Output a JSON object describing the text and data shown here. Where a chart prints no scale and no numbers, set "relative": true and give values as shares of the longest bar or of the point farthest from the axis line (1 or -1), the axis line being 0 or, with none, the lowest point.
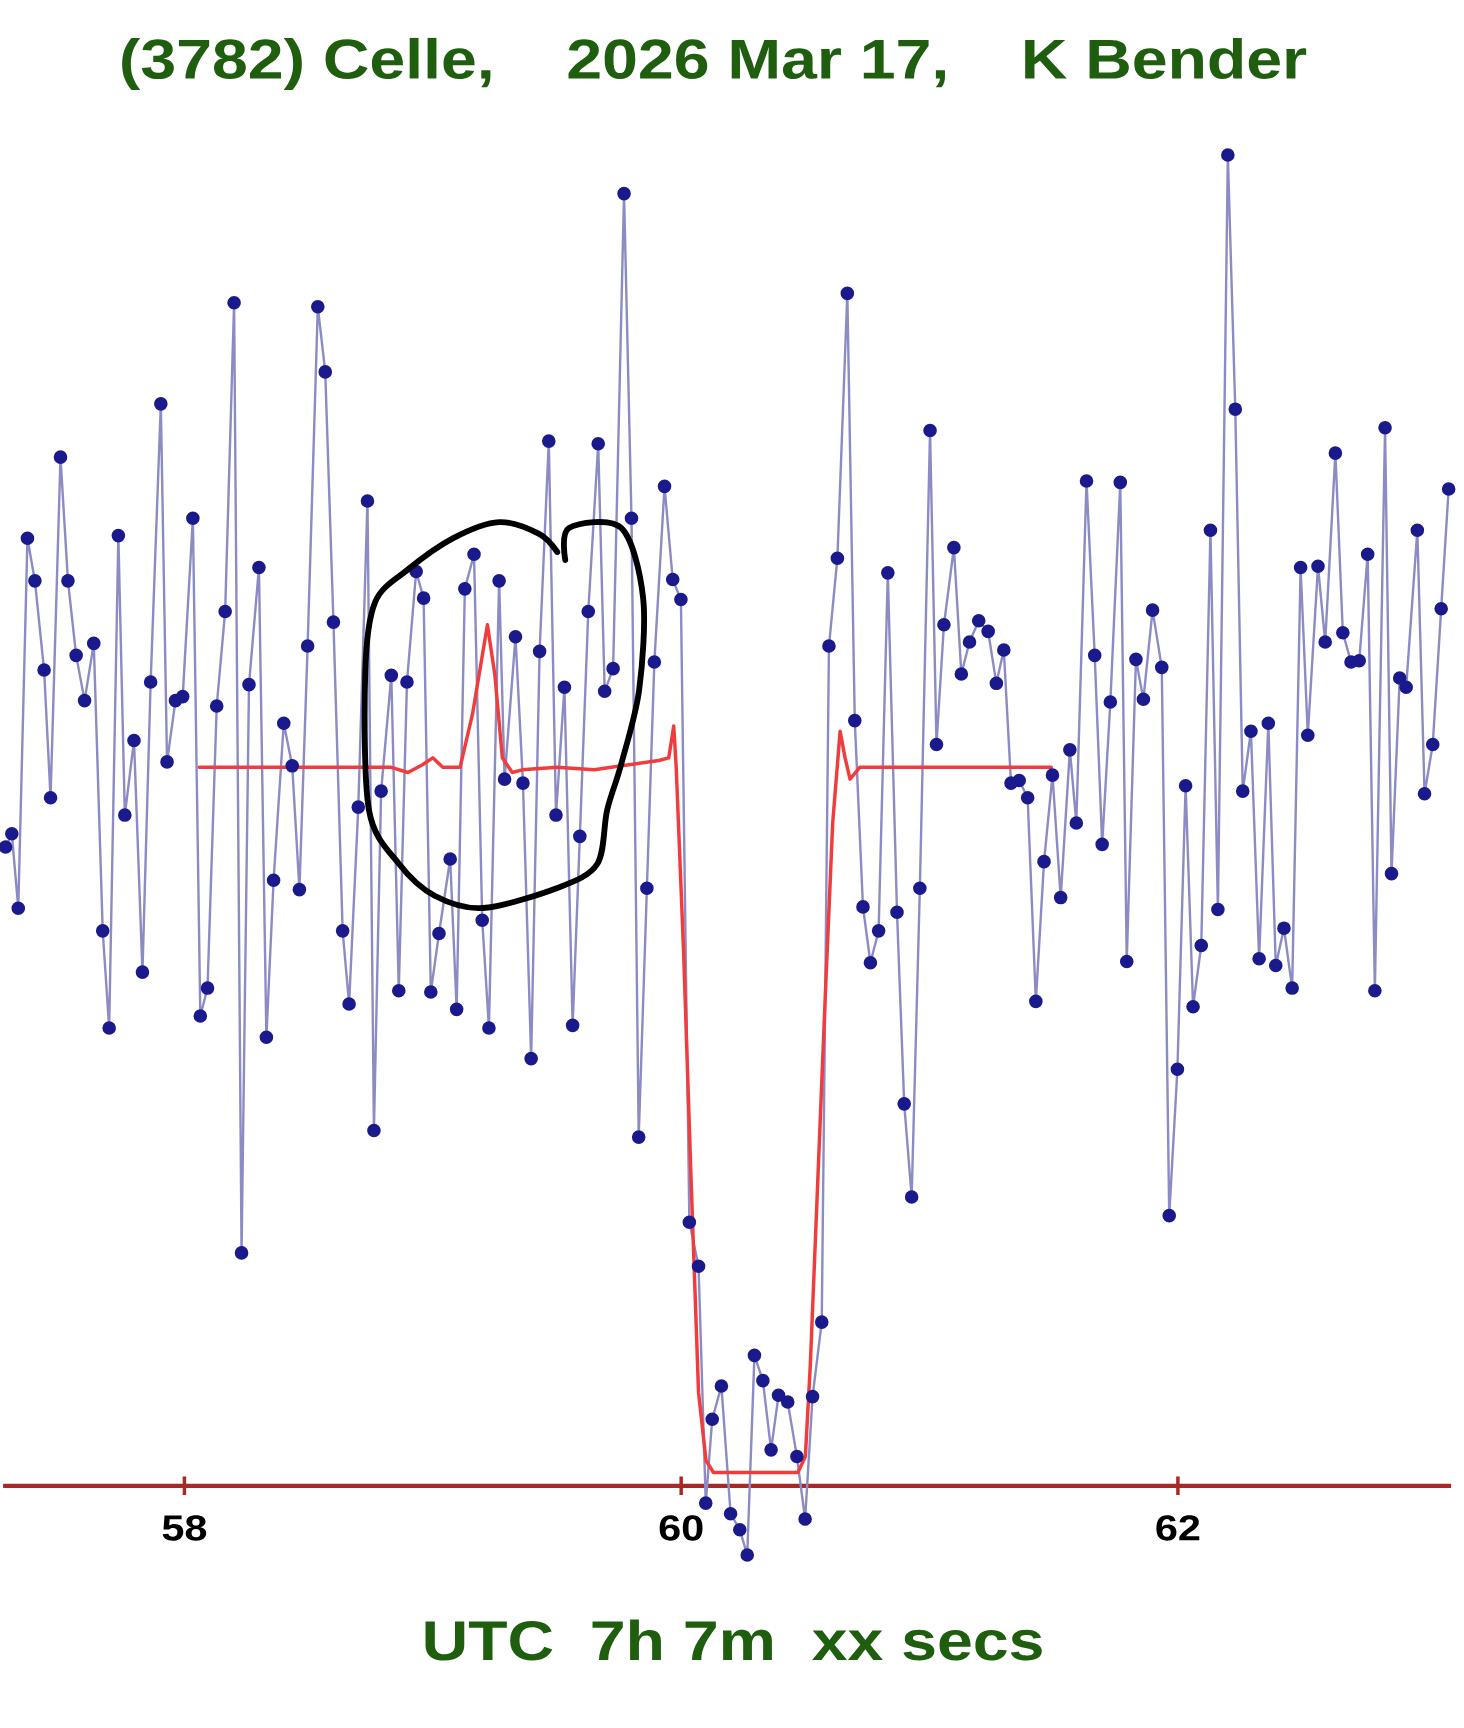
{
  "chart_data": {
    "type": "line",
    "title": "(3782) Celle,    2026 Mar 17,    K Bender",
    "xlabel": "UTC  7h 7m  xx secs",
    "relative": true,
    "xlim": [
      57.27,
      63.1
    ],
    "xticks": [
      58,
      60,
      62
    ],
    "marker": "circle",
    "line_style": "solid",
    "series": [
      {
        "color": "#1a1a8c",
        "x": [
          57.28,
          57.305,
          57.331,
          57.368,
          57.398,
          57.435,
          57.461,
          57.501,
          57.531,
          57.564,
          57.598,
          57.635,
          57.671,
          57.697,
          57.734,
          57.76,
          57.797,
          57.831,
          57.864,
          57.905,
          57.93,
          57.964,
          57.993,
          58.034,
          58.064,
          58.093,
          58.13,
          58.164,
          58.2,
          58.23,
          58.26,
          58.3,
          58.33,
          58.359,
          58.4,
          58.434,
          58.463,
          58.496,
          58.537,
          58.567,
          58.6,
          58.637,
          58.663,
          58.7,
          58.737,
          58.763,
          58.792,
          58.833,
          58.863,
          58.896,
          58.933,
          58.963,
          58.992,
          59.025,
          59.07,
          59.096,
          59.129,
          59.166,
          59.199,
          59.226,
          59.267,
          59.289,
          59.333,
          59.363,
          59.396,
          59.43,
          59.467,
          59.496,
          59.53,
          59.563,
          59.592,
          59.626,
          59.666,
          59.692,
          59.726,
          59.77,
          59.8,
          59.829,
          59.862,
          59.892,
          59.933,
          59.966,
          59.999,
          60.033,
          60.07,
          60.099,
          60.125,
          60.162,
          60.199,
          60.236,
          60.266,
          60.295,
          60.329,
          60.362,
          60.392,
          60.429,
          60.466,
          60.499,
          60.529,
          60.566,
          60.595,
          60.629,
          60.669,
          60.699,
          60.732,
          60.762,
          60.795,
          60.832,
          60.869,
          60.898,
          60.928,
          60.961,
          61.002,
          61.028,
          61.058,
          61.098,
          61.128,
          61.161,
          61.198,
          61.236,
          61.269,
          61.299,
          61.328,
          61.361,
          61.395,
          61.428,
          61.461,
          61.495,
          61.528,
          61.565,
          61.591,
          61.632,
          61.665,
          61.695,
          61.728,
          61.768,
          61.794,
          61.831,
          61.861,
          61.898,
          61.935,
          61.965,
          61.998,
          62.031,
          62.061,
          62.094,
          62.131,
          62.161,
          62.201,
          62.231,
          62.261,
          62.294,
          62.327,
          62.364,
          62.394,
          62.427,
          62.46,
          62.494,
          62.523,
          62.564,
          62.593,
          62.634,
          62.664,
          62.697,
          62.73,
          62.764,
          62.793,
          62.834,
          62.86,
          62.893,
          62.919,
          62.964,
          62.993,
          63.026,
          63.06,
          63.09
        ],
        "values": [
          0.48,
          0.49,
          0.434,
          0.712,
          0.68,
          0.613,
          0.517,
          0.773,
          0.68,
          0.624,
          0.59,
          0.633,
          0.417,
          0.344,
          0.714,
          0.504,
          0.56,
          0.386,
          0.604,
          0.813,
          0.544,
          0.59,
          0.593,
          0.727,
          0.353,
          0.374,
          0.586,
          0.657,
          0.889,
          0.175,
          0.602,
          0.69,
          0.337,
          0.455,
          0.573,
          0.541,
          0.448,
          0.631,
          0.886,
          0.837,
          0.649,
          0.417,
          0.362,
          0.51,
          0.74,
          0.267,
          0.522,
          0.609,
          0.372,
          0.604,
          0.687,
          0.667,
          0.371,
          0.415,
          0.471,
          0.358,
          0.674,
          0.7,
          0.425,
          0.344,
          0.68,
          0.531,
          0.638,
          0.528,
          0.321,
          0.627,
          0.785,
          0.504,
          0.6,
          0.346,
          0.488,
          0.657,
          0.783,
          0.597,
          0.614,
          0.971,
          0.727,
          0.262,
          0.449,
          0.619,
          0.751,
          0.681,
          0.666,
          0.198,
          0.165,
          -0.013,
          0.05,
          0.075,
          -0.021,
          -0.033,
          -0.052,
          0.098,
          0.079,
          0.027,
          0.068,
          0.063,
          0.022,
          -0.025,
          0.067,
          0.123,
          0.631,
          0.697,
          0.896,
          0.575,
          0.435,
          0.393,
          0.417,
          0.686,
          0.431,
          0.287,
          0.217,
          0.449,
          0.793,
          0.557,
          0.647,
          0.705,
          0.61,
          0.634,
          0.65,
          0.642,
          0.603,
          0.628,
          0.528,
          0.53,
          0.517,
          0.364,
          0.469,
          0.534,
          0.442,
          0.553,
          0.498,
          0.755,
          0.624,
          0.482,
          0.589,
          0.754,
          0.394,
          0.621,
          0.591,
          0.658,
          0.615,
          0.203,
          0.313,
          0.526,
          0.36,
          0.406,
          0.718,
          0.433,
          1,
          0.809,
          0.522,
          0.567,
          0.396,
          0.573,
          0.391,
          0.419,
          0.374,
          0.69,
          0.564,
          0.691,
          0.634,
          0.776,
          0.641,
          0.619,
          0.62,
          0.7,
          0.372,
          0.795,
          0.46,
          0.607,
          0.6,
          0.718,
          0.52,
          0.557,
          0.659,
          0.749
        ]
      },
      {
        "color": "#f03c3c",
        "marker": "none",
        "x": [
          58.06,
          58.83,
          58.9,
          58.96,
          59.0,
          59.04,
          59.11,
          59.16,
          59.22,
          59.25,
          59.28,
          59.32,
          59.36,
          59.5,
          59.65,
          59.76,
          59.91,
          59.95,
          59.97,
          59.98,
          60.01,
          60.04,
          60.07,
          60.1,
          60.13,
          60.47,
          60.5,
          60.52,
          60.55,
          60.58,
          60.61,
          60.64,
          60.66,
          60.68,
          60.72,
          61.14,
          61.49
        ],
        "values": [
          0.54,
          0.54,
          0.536,
          0.542,
          0.547,
          0.54,
          0.54,
          0.58,
          0.647,
          0.609,
          0.547,
          0.536,
          0.538,
          0.54,
          0.538,
          0.541,
          0.545,
          0.547,
          0.571,
          0.54,
          0.4,
          0.23,
          0.07,
          0.019,
          0.01,
          0.01,
          0.022,
          0.091,
          0.229,
          0.367,
          0.498,
          0.567,
          0.547,
          0.531,
          0.54,
          0.54,
          0.54
        ]
      }
    ]
  }
}
